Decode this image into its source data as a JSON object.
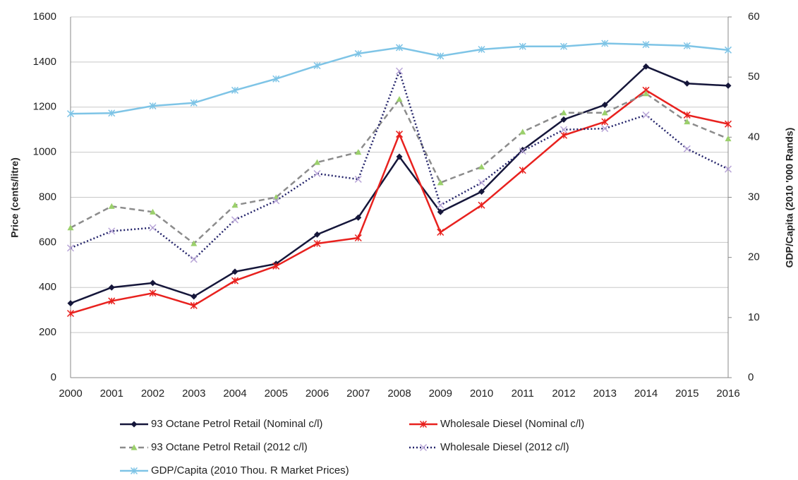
{
  "chart_data": {
    "type": "line",
    "categories": [
      "2000",
      "2001",
      "2002",
      "2003",
      "2004",
      "2005",
      "2006",
      "2007",
      "2008",
      "2009",
      "2010",
      "2011",
      "2012",
      "2013",
      "2014",
      "2015",
      "2016"
    ],
    "y_label": "Price (cents/litre)",
    "y2_label": "GDP/Capita (2010 '000 Rands)",
    "ylim": [
      0,
      1600
    ],
    "yticks": [
      0,
      200,
      400,
      600,
      800,
      1000,
      1200,
      1400,
      1600
    ],
    "y2lim": [
      0,
      60
    ],
    "y2ticks": [
      0,
      10,
      20,
      30,
      40,
      50,
      60
    ],
    "grid": true,
    "series": [
      {
        "name": "93 Octane Petrol Retail  (Nominal c/l)",
        "color": "#15163a",
        "dash": "solid",
        "marker": "diamond",
        "marker_color": "#15163a",
        "values": [
          330,
          400,
          420,
          360,
          470,
          505,
          635,
          710,
          980,
          735,
          825,
          1010,
          1145,
          1210,
          1380,
          1305,
          1295
        ]
      },
      {
        "name": "Wholesale Diesel (Nominal c/l)",
        "color": "#e8211e",
        "dash": "solid",
        "marker": "star",
        "marker_color": "#e8211e",
        "values": [
          285,
          340,
          375,
          320,
          430,
          495,
          595,
          620,
          1080,
          645,
          765,
          920,
          1075,
          1135,
          1275,
          1165,
          1125
        ]
      },
      {
        "name": "93 Octane Petrol Retail  (2012 c/l)",
        "color": "#8c8c8c",
        "dash": "dashed",
        "marker": "triangle",
        "marker_color": "#9bd06b",
        "values": [
          665,
          760,
          735,
          595,
          765,
          800,
          955,
          1000,
          1235,
          865,
          935,
          1090,
          1175,
          1175,
          1260,
          1135,
          1060
        ]
      },
      {
        "name": "Wholesale Diesel (2012 c/l)",
        "color": "#23236a",
        "dash": "dotted",
        "marker": "x",
        "marker_color": "#b9a6d8",
        "values": [
          575,
          650,
          665,
          525,
          700,
          785,
          905,
          880,
          1360,
          765,
          865,
          1005,
          1100,
          1105,
          1165,
          1015,
          925
        ]
      },
      {
        "name": "GDP/Capita (2010 Thou. R Market Prices)",
        "color": "#7ec4e6",
        "dash": "solid",
        "marker": "star",
        "marker_color": "#7ec4e6",
        "axis": "y2",
        "values": [
          43.9,
          44.0,
          45.2,
          45.7,
          47.8,
          49.7,
          51.9,
          53.9,
          54.9,
          53.5,
          54.6,
          55.1,
          55.1,
          55.6,
          55.4,
          55.2,
          54.5
        ]
      }
    ]
  }
}
